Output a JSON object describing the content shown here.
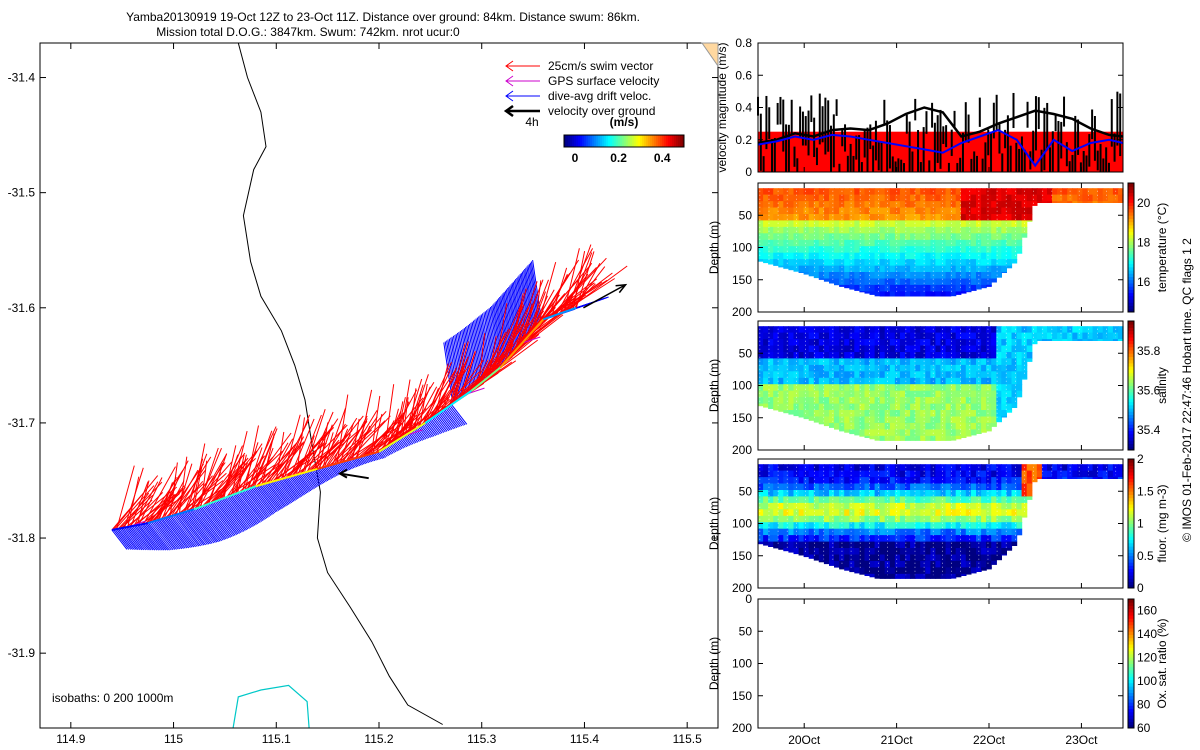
{
  "title": {
    "line1": "Yamba20130919 19-Oct 12Z to 23-Oct 11Z. Distance over ground: 84km. Distance swum: 86km.",
    "line2": "Mission total D.O.G.: 3847km. Swum: 742km. nrot ucur:0"
  },
  "side_label": "© IMOS 01-Feb-2017 22:47:46 Hobart time. QC flags 1  2",
  "chart_data": [
    {
      "type": "map-vectors",
      "xlim": [
        114.87,
        115.53
      ],
      "ylim": [
        -31.965,
        -31.37
      ],
      "xticks": [
        114.9,
        115,
        115.1,
        115.2,
        115.3,
        115.4,
        115.5
      ],
      "xticklabels": [
        "114.9",
        "115",
        "115.1",
        "115.2",
        "115.3",
        "115.4",
        "115.5"
      ],
      "yticks": [
        -31.4,
        -31.5,
        -31.6,
        -31.7,
        -31.8,
        -31.9
      ],
      "yticklabels": [
        "-31.4",
        "-31.5",
        "-31.6",
        "-31.7",
        "-31.8",
        "-31.9"
      ],
      "legend": {
        "position": "top-right",
        "entries": [
          {
            "label": "25cm/s swim vector",
            "color": "#ff0000"
          },
          {
            "label": "GPS surface velocity",
            "color": "#cc00cc"
          },
          {
            "label": "dive-avg drift veloc.",
            "color": "#0000ff"
          },
          {
            "label": "velocity over ground",
            "color": "#000000"
          }
        ],
        "time_scale_label": "4h"
      },
      "colorbar": {
        "title": "(m/s)",
        "ticks": [
          0,
          0.2,
          0.4
        ],
        "ticklabels": [
          "0",
          "0.2",
          "0.4"
        ],
        "range": [
          -0.05,
          0.5
        ]
      },
      "isobath_label": "isobaths: 0   200  1000m",
      "coastline": [
        [
          115.063,
          -31.37
        ],
        [
          115.072,
          -31.4
        ],
        [
          115.085,
          -31.43
        ],
        [
          115.09,
          -31.46
        ],
        [
          115.078,
          -31.48
        ],
        [
          115.068,
          -31.52
        ],
        [
          115.075,
          -31.56
        ],
        [
          115.085,
          -31.59
        ],
        [
          115.105,
          -31.62
        ],
        [
          115.118,
          -31.65
        ],
        [
          115.128,
          -31.68
        ],
        [
          115.135,
          -31.72
        ],
        [
          115.143,
          -31.76
        ],
        [
          115.14,
          -31.8
        ],
        [
          115.15,
          -31.83
        ],
        [
          115.172,
          -31.86
        ],
        [
          115.193,
          -31.89
        ],
        [
          115.21,
          -31.92
        ],
        [
          115.228,
          -31.945
        ],
        [
          115.262,
          -31.962
        ]
      ],
      "isobath_0": [
        [
          115.058,
          -31.965
        ],
        [
          115.063,
          -31.938
        ],
        [
          115.085,
          -31.932
        ],
        [
          115.112,
          -31.928
        ],
        [
          115.13,
          -31.942
        ],
        [
          115.132,
          -31.965
        ]
      ],
      "track": [
        [
          114.94,
          -31.793
        ],
        [
          114.975,
          -31.787
        ],
        [
          115.02,
          -31.775
        ],
        [
          115.08,
          -31.755
        ],
        [
          115.14,
          -31.74
        ],
        [
          115.2,
          -31.725
        ],
        [
          115.245,
          -31.7
        ],
        [
          115.29,
          -31.672
        ],
        [
          115.318,
          -31.652
        ],
        [
          115.36,
          -31.61
        ],
        [
          115.392,
          -31.6
        ]
      ],
      "track_colors": [
        0.02,
        0.08,
        0.18,
        0.3,
        0.4,
        0.28,
        0.15,
        0.22,
        0.35,
        0.1
      ],
      "swim_vector_uv_ms": [
        0.14,
        0.14
      ],
      "drift_vector_uv_ms": [
        0.14,
        -0.18
      ],
      "ground_vector": {
        "start": [
          115.399,
          -31.6
        ],
        "end": [
          115.44,
          -31.58
        ]
      }
    },
    {
      "type": "line",
      "ylabel": "velocity magnitude (m/s)",
      "ylim": [
        0,
        0.8
      ],
      "yticks": [
        0,
        0.2,
        0.4,
        0.6,
        0.8
      ],
      "threshold_fill": 0.25,
      "fill_color": "#ff0000",
      "x_days": [
        0.0,
        0.2,
        0.4,
        0.6,
        0.8,
        1.0,
        1.2,
        1.4,
        1.6,
        1.8,
        2.0,
        2.2,
        2.4,
        2.6,
        2.8,
        3.0,
        3.2,
        3.4,
        3.6,
        3.8,
        3.95
      ],
      "series": [
        {
          "color": "#000000",
          "values": [
            0.18,
            0.2,
            0.24,
            0.22,
            0.26,
            0.27,
            0.26,
            0.3,
            0.36,
            0.4,
            0.37,
            0.22,
            0.25,
            0.3,
            0.34,
            0.38,
            0.36,
            0.33,
            0.27,
            0.23,
            0.22
          ]
        },
        {
          "color": "#0000ff",
          "values": [
            0.17,
            0.19,
            0.22,
            0.2,
            0.23,
            0.22,
            0.2,
            0.18,
            0.16,
            0.14,
            0.12,
            0.18,
            0.22,
            0.26,
            0.2,
            0.04,
            0.2,
            0.13,
            0.18,
            0.2,
            0.18
          ]
        }
      ]
    },
    {
      "type": "heatmap",
      "ylabel": "Depth (m)",
      "colorbar_label": "temperature (°C)",
      "clim": [
        14.5,
        21
      ],
      "cticks": [
        16,
        18,
        20
      ],
      "yticks": [
        50,
        100,
        150,
        200
      ],
      "ylim": [
        0,
        200
      ],
      "bottom_profile": [
        [
          0,
          120
        ],
        [
          0.5,
          140
        ],
        [
          0.9,
          160
        ],
        [
          1.3,
          175
        ],
        [
          2.1,
          175
        ],
        [
          2.5,
          160
        ],
        [
          2.8,
          120
        ],
        [
          3.0,
          30
        ],
        [
          3.95,
          30
        ]
      ],
      "field": {
        "top_value": 19.8,
        "bottom_value": 16.0,
        "warm_patch_day": [
          2.2,
          3.2
        ],
        "warm_patch_value": 20.4
      }
    },
    {
      "type": "heatmap",
      "ylabel": "Depth (m)",
      "colorbar_label": "salinity",
      "clim": [
        35.3,
        35.95
      ],
      "cticks": [
        35.4,
        35.6,
        35.8
      ],
      "yticks": [
        50,
        100,
        150,
        200
      ],
      "ylim": [
        0,
        200
      ],
      "bottom_profile": [
        [
          0,
          130
        ],
        [
          0.5,
          150
        ],
        [
          0.9,
          170
        ],
        [
          1.3,
          185
        ],
        [
          2.1,
          185
        ],
        [
          2.5,
          170
        ],
        [
          2.8,
          130
        ],
        [
          3.0,
          30
        ],
        [
          3.95,
          30
        ]
      ],
      "field": {
        "top_value": 35.36,
        "bottom_value": 35.6,
        "mid_band_value": 35.64
      }
    },
    {
      "type": "heatmap",
      "ylabel": "Depth (m)",
      "colorbar_label": "fluor. (mg m-3)",
      "clim": [
        0,
        2
      ],
      "cticks": [
        0,
        0.5,
        1,
        1.5,
        2
      ],
      "yticks": [
        50,
        100,
        150,
        200
      ],
      "ylim": [
        0,
        200
      ],
      "bottom_profile": [
        [
          0,
          130
        ],
        [
          0.5,
          150
        ],
        [
          0.9,
          170
        ],
        [
          1.3,
          185
        ],
        [
          2.1,
          185
        ],
        [
          2.5,
          170
        ],
        [
          2.8,
          130
        ],
        [
          3.0,
          30
        ],
        [
          3.95,
          30
        ]
      ],
      "field": {
        "top_value": 0.2,
        "chl_max_depth": 80,
        "chl_max_value": 1.0,
        "bloom_day": [
          2.85,
          3.05
        ],
        "bloom_value": 1.6
      }
    },
    {
      "type": "heatmap",
      "ylabel": "Depth (m)",
      "colorbar_label": "Ox. sat. ratio (%)",
      "clim": [
        60,
        170
      ],
      "cticks": [
        60,
        80,
        100,
        120,
        140,
        160
      ],
      "yticks": [
        0,
        50,
        100,
        150,
        200
      ],
      "ylim": [
        0,
        200
      ],
      "empty": true
    }
  ],
  "time_axis": {
    "xlim_days": [
      0,
      3.95
    ],
    "ticks_days": [
      0.5,
      1.5,
      2.5,
      3.5
    ],
    "labels": [
      "20Oct",
      "21Oct",
      "22Oct",
      "23Oct"
    ]
  }
}
